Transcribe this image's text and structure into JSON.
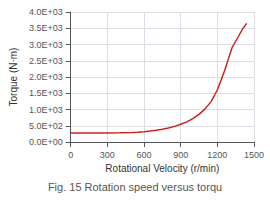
{
  "chart_data": {
    "type": "line",
    "title": "Fig. 15 Rotation speed versus torqu",
    "xlabel": "Rotational Velocity (r/min)",
    "ylabel": "Torque (N·m)",
    "x": [
      0,
      100,
      200,
      300,
      400,
      500,
      550,
      600,
      650,
      700,
      750,
      800,
      850,
      900,
      950,
      1000,
      1050,
      1100,
      1150,
      1200,
      1230,
      1260,
      1290,
      1320,
      1350,
      1380,
      1410,
      1440
    ],
    "values": [
      280,
      278,
      275,
      278,
      282,
      290,
      300,
      315,
      335,
      360,
      390,
      430,
      480,
      545,
      620,
      720,
      850,
      1020,
      1250,
      1600,
      1900,
      2200,
      2550,
      2900,
      3100,
      3300,
      3500,
      3650
    ],
    "color": "#cc2222",
    "xlim": [
      0,
      1500
    ],
    "ylim": [
      0,
      4000
    ],
    "xticks": [
      0,
      300,
      600,
      900,
      1200,
      1500
    ],
    "yticks": [
      {
        "value": 0,
        "label": "0.0E+00"
      },
      {
        "value": 500,
        "label": "5.0E+02"
      },
      {
        "value": 1000,
        "label": "1.0E+03"
      },
      {
        "value": 1500,
        "label": "1.5E+03"
      },
      {
        "value": 2000,
        "label": "2.0E+03"
      },
      {
        "value": 2500,
        "label": "2.5E+03"
      },
      {
        "value": 3000,
        "label": "3.0E+03"
      },
      {
        "value": 3500,
        "label": "3.5E+03"
      },
      {
        "value": 4000,
        "label": "4.0E+03"
      }
    ],
    "grid": true
  }
}
